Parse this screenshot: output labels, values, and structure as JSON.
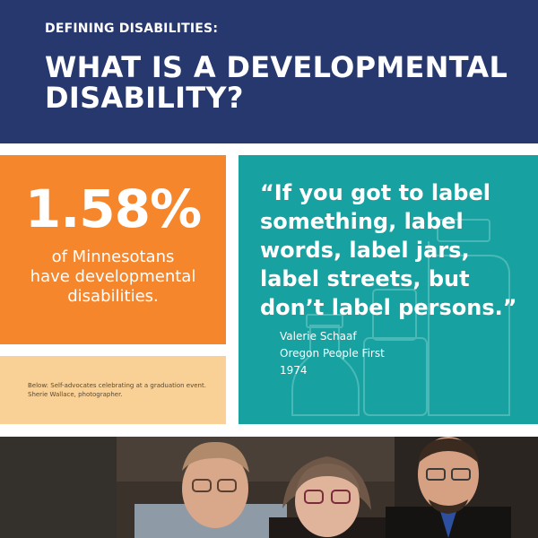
{
  "header": {
    "kicker": "DEFINING DISABILITIES:",
    "title": "WHAT IS A DEVELOPMENTAL DISABILITY?"
  },
  "stat": {
    "value": "1.58%",
    "caption": "of Minnesotans\nhave developmental\ndisabilities."
  },
  "photo_caption": {
    "line1": "Below: Self-advocates celebrating at a graduation event.",
    "line2": "Sherie Wallace, photographer."
  },
  "quote": {
    "text": "“If you got to label something, label words, label jars, label streets, but don’t label persons.”",
    "author": "Valerie Schaaf",
    "organization": "Oregon People First",
    "year": "1974"
  },
  "colors": {
    "header_bg": "#26386e",
    "stat_bg": "#f5862c",
    "caption_bg": "#f9d196",
    "quote_bg": "#17a1a0"
  },
  "photo": {
    "subject": "three self-advocates smiling"
  }
}
